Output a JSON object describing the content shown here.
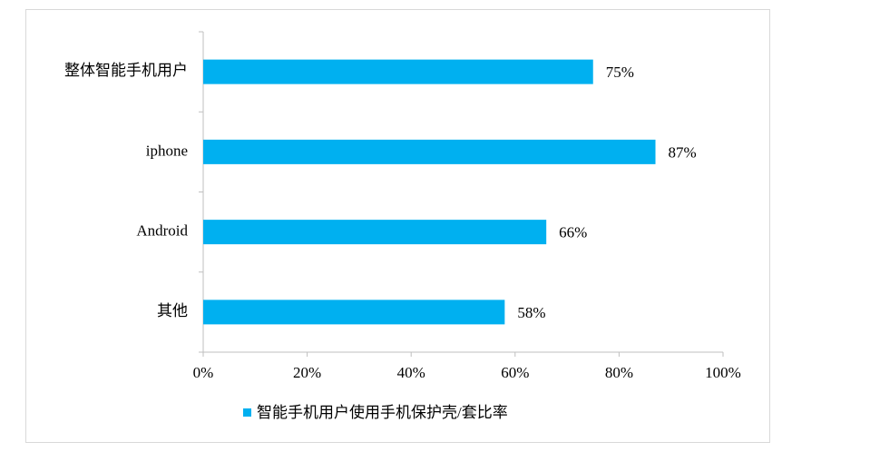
{
  "chart_data": {
    "type": "bar",
    "orientation": "horizontal",
    "categories": [
      "整体智能手机用户",
      "iphone",
      "Android",
      "其他"
    ],
    "series": [
      {
        "name": "智能手机用户使用手机保护壳/套比率",
        "color": "#00b0f0",
        "values": [
          75,
          87,
          66,
          58
        ],
        "value_labels": [
          "75%",
          "87%",
          "66%",
          "58%"
        ]
      }
    ],
    "xlim": [
      0,
      100
    ],
    "xticks": [
      {
        "value": 0,
        "label": "0%"
      },
      {
        "value": 20,
        "label": "20%"
      },
      {
        "value": 40,
        "label": "40%"
      },
      {
        "value": 60,
        "label": "60%"
      },
      {
        "value": 80,
        "label": "80%"
      },
      {
        "value": 100,
        "label": "100%"
      }
    ],
    "grid": false,
    "legend": "bottom"
  }
}
